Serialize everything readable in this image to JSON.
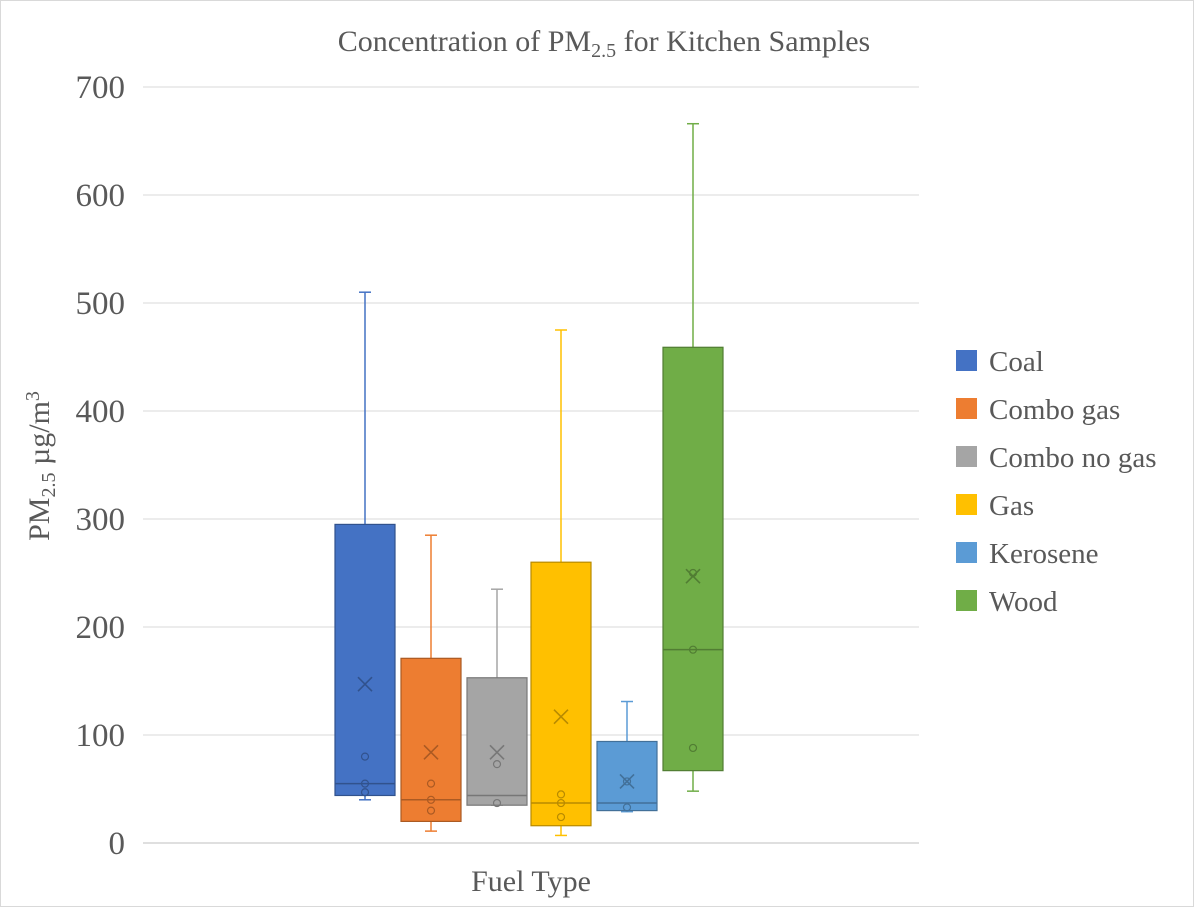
{
  "chart_data": {
    "type": "box",
    "title": "Concentration of PM",
    "title_sub": "2.5",
    "title_rest": " for Kitchen Samples",
    "xlabel": "Fuel Type",
    "ylabel_main": "PM",
    "ylabel_sub": "2.5",
    "ylabel_unit": " µg/m",
    "ylabel_sup": "3",
    "ylim": [
      0,
      700
    ],
    "yticks": [
      0,
      100,
      200,
      300,
      400,
      500,
      600,
      700
    ],
    "grid": true,
    "legend_position": "right",
    "series": [
      {
        "name": "Coal",
        "color": "#4472c4",
        "min": 40,
        "q1": 44,
        "median": 55,
        "q3": 295,
        "max": 510,
        "mean": 147,
        "points": [
          80,
          55,
          47
        ]
      },
      {
        "name": "Combo gas",
        "color": "#ed7d31",
        "min": 11,
        "q1": 20,
        "median": 40,
        "q3": 171,
        "max": 285,
        "mean": 84,
        "points": [
          55,
          40,
          30
        ]
      },
      {
        "name": "Combo no gas",
        "color": "#a5a5a5",
        "min": 35,
        "q1": 35,
        "median": 44,
        "q3": 153,
        "max": 235,
        "mean": 84,
        "points": [
          73,
          37
        ]
      },
      {
        "name": "Gas",
        "color": "#ffc000",
        "min": 7,
        "q1": 16,
        "median": 37,
        "q3": 260,
        "max": 475,
        "mean": 117,
        "points": [
          45,
          37,
          24
        ]
      },
      {
        "name": "Kerosene",
        "color": "#5b9bd5",
        "min": 29,
        "q1": 30,
        "median": 37,
        "q3": 94,
        "max": 131,
        "mean": 57,
        "points": [
          57,
          33
        ]
      },
      {
        "name": "Wood",
        "color": "#70ad47",
        "min": 48,
        "q1": 67,
        "median": 179,
        "q3": 459,
        "max": 666,
        "mean": 247,
        "points": [
          250,
          179,
          88
        ]
      }
    ]
  }
}
